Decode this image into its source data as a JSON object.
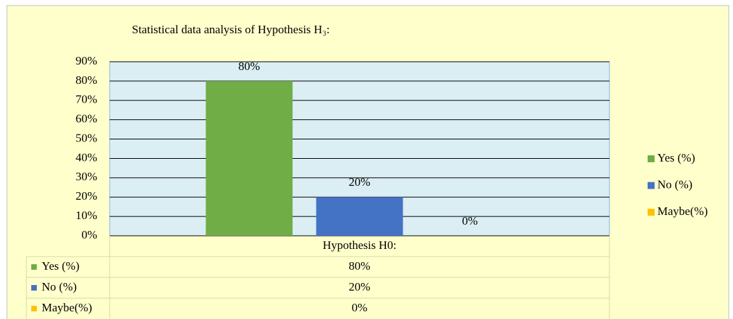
{
  "chart_data": {
    "type": "bar",
    "title": "Statistical data analysis of Hypothesis H₃:",
    "categories": [
      "Hypothesis H0:"
    ],
    "series": [
      {
        "name": "Yes (%)",
        "color": "#70ad47",
        "values": [
          80
        ],
        "value_labels": [
          "80%"
        ]
      },
      {
        "name": "No (%)",
        "color": "#4472c4",
        "values": [
          20
        ],
        "value_labels": [
          "20%"
        ]
      },
      {
        "name": "Maybe(%)",
        "color": "#ffc000",
        "values": [
          0
        ],
        "value_labels": [
          "0%"
        ]
      }
    ],
    "ylim": [
      0,
      90
    ],
    "yticks": [
      {
        "value": 0,
        "label": "0%"
      },
      {
        "value": 10,
        "label": "10%"
      },
      {
        "value": 20,
        "label": "20%"
      },
      {
        "value": 30,
        "label": "30%"
      },
      {
        "value": 40,
        "label": "40%"
      },
      {
        "value": 50,
        "label": "50%"
      },
      {
        "value": 60,
        "label": "60%"
      },
      {
        "value": 70,
        "label": "70%"
      },
      {
        "value": 80,
        "label": "80%"
      },
      {
        "value": 90,
        "label": "90%"
      }
    ],
    "grid": true,
    "legend": "right"
  }
}
